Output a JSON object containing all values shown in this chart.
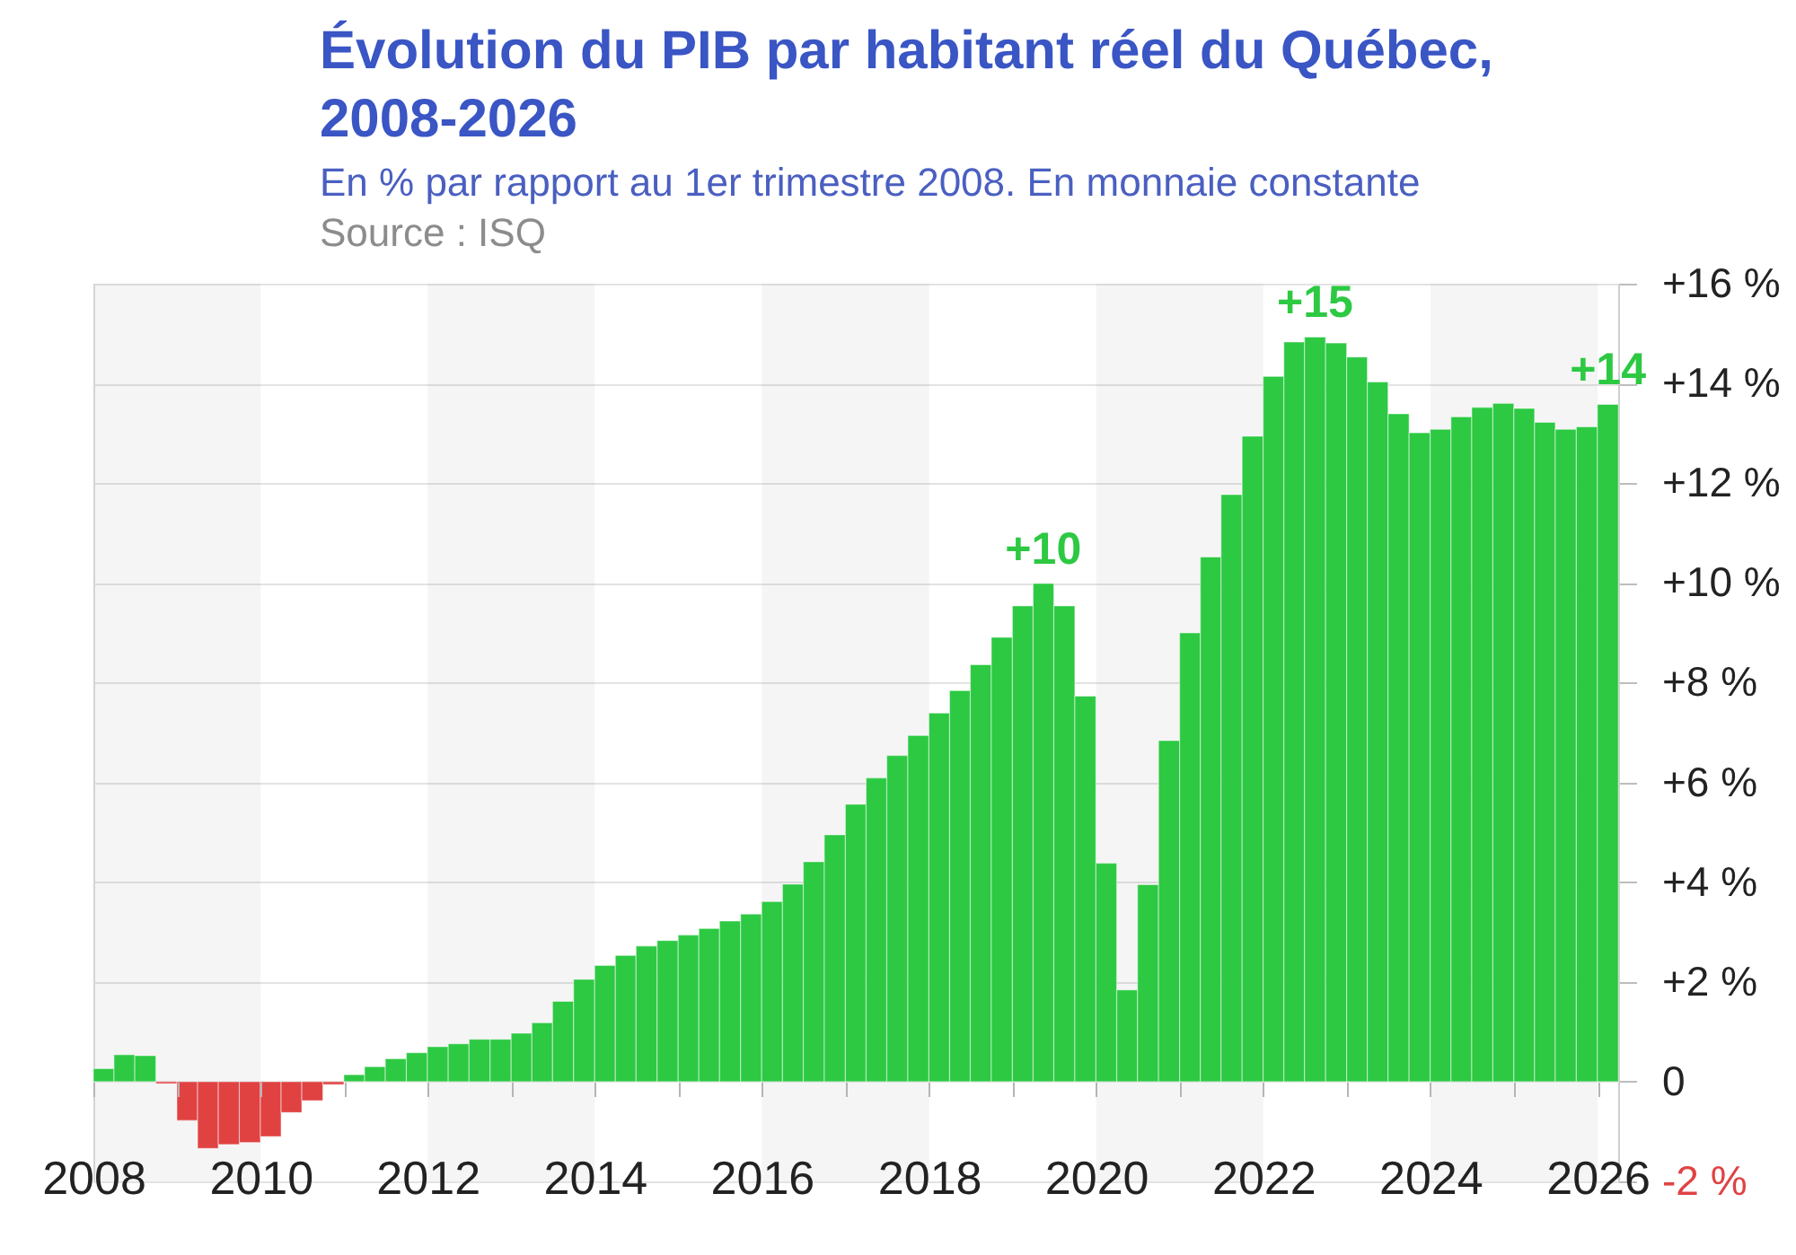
{
  "chart_data": {
    "type": "bar",
    "title": "Évolution du PIB par habitant réel du Québec, 2008-2026",
    "subtitle": "En % par rapport au 1er trimestre 2008. En monnaie constante",
    "annotations": [
      "Source : ISQ"
    ],
    "x": [
      "2008-02-15",
      "2008-05-15",
      "2008-08-15",
      "2008-11-15",
      "2009-02-15",
      "2009-05-15",
      "2009-08-15",
      "2009-11-15",
      "2010-02-15",
      "2010-05-15",
      "2010-08-15",
      "2010-11-15",
      "2011-02-15",
      "2011-05-15",
      "2011-08-15",
      "2011-11-15",
      "2012-02-15",
      "2012-05-15",
      "2012-08-15",
      "2012-11-15",
      "2013-02-15",
      "2013-05-15",
      "2013-08-15",
      "2013-11-15",
      "2014-02-15",
      "2014-05-15",
      "2014-08-15",
      "2014-11-15",
      "2015-02-15",
      "2015-05-15",
      "2015-08-15",
      "2015-11-15",
      "2016-02-15",
      "2016-05-15",
      "2016-08-15",
      "2016-11-15",
      "2017-02-15",
      "2017-05-15",
      "2017-08-15",
      "2017-11-15",
      "2018-02-15",
      "2018-05-15",
      "2018-08-15",
      "2018-11-15",
      "2019-02-15",
      "2019-05-15",
      "2019-08-15",
      "2019-11-15",
      "2020-02-15",
      "2020-05-15",
      "2020-08-15",
      "2020-11-15",
      "2021-02-15",
      "2021-05-15",
      "2021-08-15",
      "2021-11-15",
      "2022-02-15",
      "2022-05-15",
      "2022-08-15",
      "2022-11-15",
      "2023-02-15",
      "2023-05-15",
      "2023-08-15",
      "2023-11-15",
      "2024-02-15",
      "2024-05-15",
      "2024-08-15",
      "2024-11-15",
      "2025-02-15",
      "2025-05-15",
      "2025-08-15",
      "2025-11-15",
      "2026-02-15"
    ],
    "values": [
      0.26,
      0.54,
      0.52,
      -0.04,
      -0.78,
      -1.34,
      -1.26,
      -1.22,
      -1.1,
      -0.62,
      -0.38,
      -0.06,
      0.14,
      0.3,
      0.46,
      0.58,
      0.7,
      0.76,
      0.85,
      0.85,
      0.97,
      1.18,
      1.61,
      2.05,
      2.33,
      2.53,
      2.72,
      2.83,
      2.94,
      3.07,
      3.22,
      3.36,
      3.61,
      3.96,
      4.41,
      4.95,
      5.56,
      6.09,
      6.54,
      6.94,
      7.39,
      7.84,
      8.36,
      8.91,
      9.54,
      9.99,
      9.54,
      7.73,
      4.38,
      1.84,
      3.95,
      6.84,
      9.0,
      10.52,
      11.77,
      12.94,
      14.14,
      14.83,
      14.93,
      14.81,
      14.53,
      14.03,
      13.39,
      13.01,
      13.08,
      13.33,
      13.52,
      13.6,
      13.5,
      13.22,
      13.08,
      13.13,
      13.58
    ],
    "colors": [
      "#2dc943",
      "#2dc943",
      "#2dc943",
      "#e04242",
      "#e04242",
      "#e04242",
      "#e04242",
      "#e04242",
      "#e04242",
      "#e04242",
      "#e04242",
      "#e04242",
      "#2dc943",
      "#2dc943",
      "#2dc943",
      "#2dc943",
      "#2dc943",
      "#2dc943",
      "#2dc943",
      "#2dc943",
      "#2dc943",
      "#2dc943",
      "#2dc943",
      "#2dc943",
      "#2dc943",
      "#2dc943",
      "#2dc943",
      "#2dc943",
      "#2dc943",
      "#2dc943",
      "#2dc943",
      "#2dc943",
      "#2dc943",
      "#2dc943",
      "#2dc943",
      "#2dc943",
      "#2dc943",
      "#2dc943",
      "#2dc943",
      "#2dc943",
      "#2dc943",
      "#2dc943",
      "#2dc943",
      "#2dc943",
      "#2dc943",
      "#2dc943",
      "#2dc943",
      "#2dc943",
      "#2dc943",
      "#2dc943",
      "#2dc943",
      "#2dc943",
      "#2dc943",
      "#2dc943",
      "#2dc943",
      "#2dc943",
      "#2dc943",
      "#2dc943",
      "#2dc943",
      "#2dc943",
      "#2dc943",
      "#2dc943",
      "#2dc943",
      "#2dc943",
      "#2dc943",
      "#2dc943",
      "#2dc943",
      "#2dc943",
      "#2dc943",
      "#2dc943",
      "#2dc943",
      "#2dc943",
      "#2dc943"
    ],
    "value_labels": [
      null,
      null,
      null,
      null,
      null,
      null,
      null,
      null,
      null,
      null,
      null,
      null,
      null,
      null,
      null,
      null,
      null,
      null,
      null,
      null,
      null,
      null,
      null,
      null,
      null,
      null,
      null,
      null,
      null,
      null,
      null,
      null,
      null,
      null,
      null,
      null,
      null,
      null,
      null,
      null,
      null,
      null,
      null,
      null,
      null,
      "+10",
      null,
      null,
      null,
      null,
      null,
      null,
      null,
      null,
      null,
      null,
      null,
      null,
      "+15",
      null,
      null,
      null,
      null,
      null,
      null,
      null,
      null,
      null,
      null,
      null,
      null,
      null,
      "+14"
    ],
    "xlim": [
      "2008-01-01",
      "2026-04-01"
    ],
    "xticks": [
      "2008",
      {
        "value": "2009",
        "label": null
      },
      "2010",
      {
        "value": "2011",
        "label": null
      },
      "2012",
      {
        "value": "2013",
        "label": null
      },
      "2014",
      {
        "value": "2015",
        "label": null
      },
      "2016",
      {
        "value": "2017",
        "label": null
      },
      "2018",
      {
        "value": "2019",
        "label": null
      },
      "2020",
      {
        "value": "2021",
        "label": null
      },
      "2022",
      {
        "value": "2023",
        "label": null
      },
      "2024",
      {
        "value": "2025",
        "label": null
      },
      "2026"
    ],
    "ylim": [
      -2,
      16
    ],
    "yticks": [
      {
        "value": -2,
        "label": "-2 %"
      },
      0,
      {
        "value": 2,
        "label": "+2 %"
      },
      {
        "value": 4,
        "label": "+4 %"
      },
      {
        "value": 6,
        "label": "+6 %"
      },
      {
        "value": 8,
        "label": "+8 %"
      },
      {
        "value": 10,
        "label": "+10 %"
      },
      {
        "value": 12,
        "label": "+12 %"
      },
      {
        "value": 14,
        "label": "+14 %"
      },
      {
        "value": 16,
        "label": "+16 %"
      }
    ],
    "grid": "y",
    "bands": [
      {
        "axis": "x",
        "from": "2008",
        "to": "2010",
        "color": "#f5f5f5"
      },
      {
        "axis": "x",
        "from": "2012",
        "to": "2014",
        "color": "#f5f5f5"
      },
      {
        "axis": "x",
        "from": "2016",
        "to": "2018",
        "color": "#f5f5f5"
      },
      {
        "axis": "x",
        "from": "2020",
        "to": "2022",
        "color": "#f5f5f5"
      },
      {
        "axis": "x",
        "from": "2024",
        "to": "2026",
        "color": "#f5f5f5"
      }
    ]
  }
}
